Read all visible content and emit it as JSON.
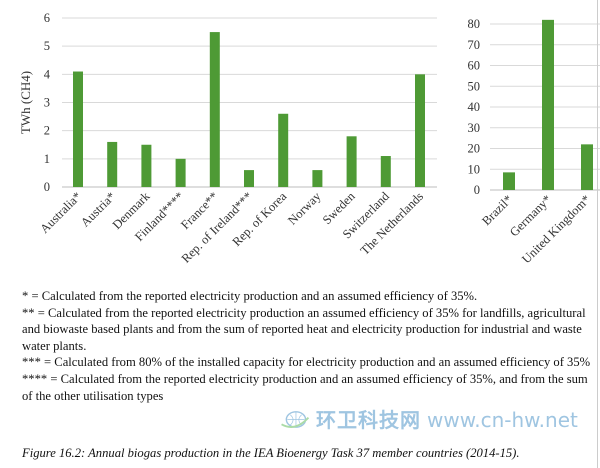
{
  "chart_data": [
    {
      "type": "bar",
      "ylabel": "TWh (CH4)",
      "ylim": [
        0,
        6
      ],
      "yticks": [
        0,
        1,
        2,
        3,
        4,
        5,
        6
      ],
      "grid": true,
      "color": "#4e9a35",
      "categories": [
        "Australia*",
        "Austria*",
        "Denmark",
        "Finland****",
        "France**",
        "Rep. of Ireland***",
        "Rep. of Korea",
        "Norway",
        "Sweden",
        "Switzerland",
        "The Netherlands"
      ],
      "values": [
        4.1,
        1.6,
        1.5,
        1.0,
        5.5,
        0.6,
        2.6,
        0.6,
        1.8,
        1.1,
        4.0
      ]
    },
    {
      "type": "bar",
      "ylim": [
        0,
        80
      ],
      "yticks": [
        0,
        10,
        20,
        30,
        40,
        50,
        60,
        70,
        80
      ],
      "grid": true,
      "color": "#4e9a35",
      "categories": [
        "Brazil*",
        "Germany*",
        "United Kingdom*"
      ],
      "values": [
        8.5,
        82,
        22
      ]
    }
  ],
  "notes": [
    "* = Calculated from the reported electricity production and an assumed efficiency of 35%.",
    "** = Calculated from the reported electricity production an assumed efficiency of 35% for landfills, agricultural and biowaste based plants and from the sum of reported heat and electricity production for industrial and waste water plants.",
    "*** = Calculated from 80% of the installed capacity for electricity production and an assumed efficiency of 35%",
    "**** = Calculated from the reported electricity production and an assumed efficiency of 35%, and from the sum of the other utilisation types"
  ],
  "caption": "Figure 16.2: Annual biogas production in the IEA Bioenergy Task 37 member countries (2014-15).",
  "watermark": {
    "name": "环卫科技网",
    "url": "www.cn-hw.net"
  }
}
